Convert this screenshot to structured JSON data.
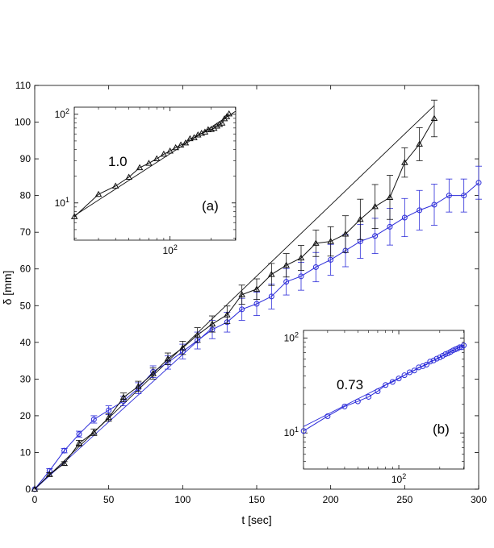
{
  "chart_data": [
    {
      "type": "line",
      "xlabel": "t [sec]",
      "ylabel": "δ [mm]",
      "xlim": [
        0,
        300
      ],
      "ylim": [
        0,
        110
      ],
      "xticks": [
        0,
        50,
        100,
        150,
        200,
        250,
        300
      ],
      "yticks": [
        0,
        10,
        20,
        30,
        40,
        50,
        60,
        70,
        80,
        90,
        100,
        110
      ],
      "grid": false,
      "series": [
        {
          "color": "#2b2bd9",
          "marker": "circle",
          "x": [
            0,
            10,
            20,
            30,
            40,
            50,
            60,
            70,
            80,
            90,
            100,
            110,
            120,
            130,
            140,
            150,
            160,
            170,
            180,
            190,
            200,
            210,
            220,
            230,
            240,
            250,
            260,
            270,
            280,
            290,
            300
          ],
          "y": [
            0,
            5,
            10.5,
            15,
            19,
            21.5,
            24,
            27.5,
            32,
            34.5,
            37.5,
            40.5,
            43.5,
            45.5,
            49,
            50.5,
            52.5,
            56.5,
            58,
            60.5,
            62.5,
            65,
            67.5,
            69,
            71.5,
            74,
            76,
            77.5,
            80,
            80,
            83.5
          ],
          "err": [
            0,
            0.6,
            0.6,
            0.8,
            1,
            1.2,
            1.3,
            1.5,
            1.6,
            1.8,
            2,
            2.3,
            2.5,
            2.7,
            3,
            3.2,
            3.4,
            3.6,
            3.8,
            4,
            4.2,
            4.4,
            4.6,
            4.8,
            5,
            5.2,
            5.4,
            5.6,
            4.5,
            4.5,
            4.5
          ]
        },
        {
          "color": "#111111",
          "marker": "triangle",
          "x": [
            0,
            10,
            20,
            30,
            40,
            50,
            60,
            70,
            80,
            90,
            100,
            110,
            120,
            130,
            140,
            150,
            160,
            170,
            180,
            190,
            200,
            210,
            220,
            230,
            240,
            250,
            260,
            270
          ],
          "y": [
            0,
            4,
            7,
            12.5,
            15.5,
            19.5,
            25,
            28,
            31.5,
            35.5,
            38.5,
            42,
            45,
            47.5,
            53,
            54.5,
            58.5,
            61,
            63,
            67,
            67.5,
            69.5,
            73.5,
            77,
            79.5,
            89,
            94,
            101
          ],
          "err": [
            0,
            0.5,
            0.5,
            0.8,
            0.9,
            1,
            1.2,
            1.4,
            1.5,
            1.6,
            1.8,
            2,
            2.2,
            2.4,
            2.6,
            2.8,
            3,
            3.2,
            3.4,
            3.6,
            4,
            5,
            5.5,
            6,
            6,
            4,
            4.5,
            5
          ]
        }
      ],
      "fit_lines": [
        {
          "color": "#111111",
          "x": [
            0,
            270
          ],
          "y": [
            0,
            104.5
          ]
        },
        {
          "color": "#2b2bd9",
          "x": [
            0,
            120
          ],
          "y": [
            0,
            44
          ]
        }
      ]
    },
    {
      "type": "line",
      "inset": "(a)",
      "xscale": "log",
      "yscale": "log",
      "xticks": [
        "10^2"
      ],
      "yticks": [
        "10^1",
        "10^2"
      ],
      "annotation": "1.0",
      "color": "#111111",
      "marker": "triangle",
      "slope": 1.0
    },
    {
      "type": "line",
      "inset": "(b)",
      "xscale": "log",
      "yscale": "log",
      "xticks": [
        "10^2"
      ],
      "yticks": [
        "10^1",
        "10^2"
      ],
      "annotation": "0.73",
      "color": "#2b2bd9",
      "marker": "circle",
      "slope": 0.73
    }
  ]
}
